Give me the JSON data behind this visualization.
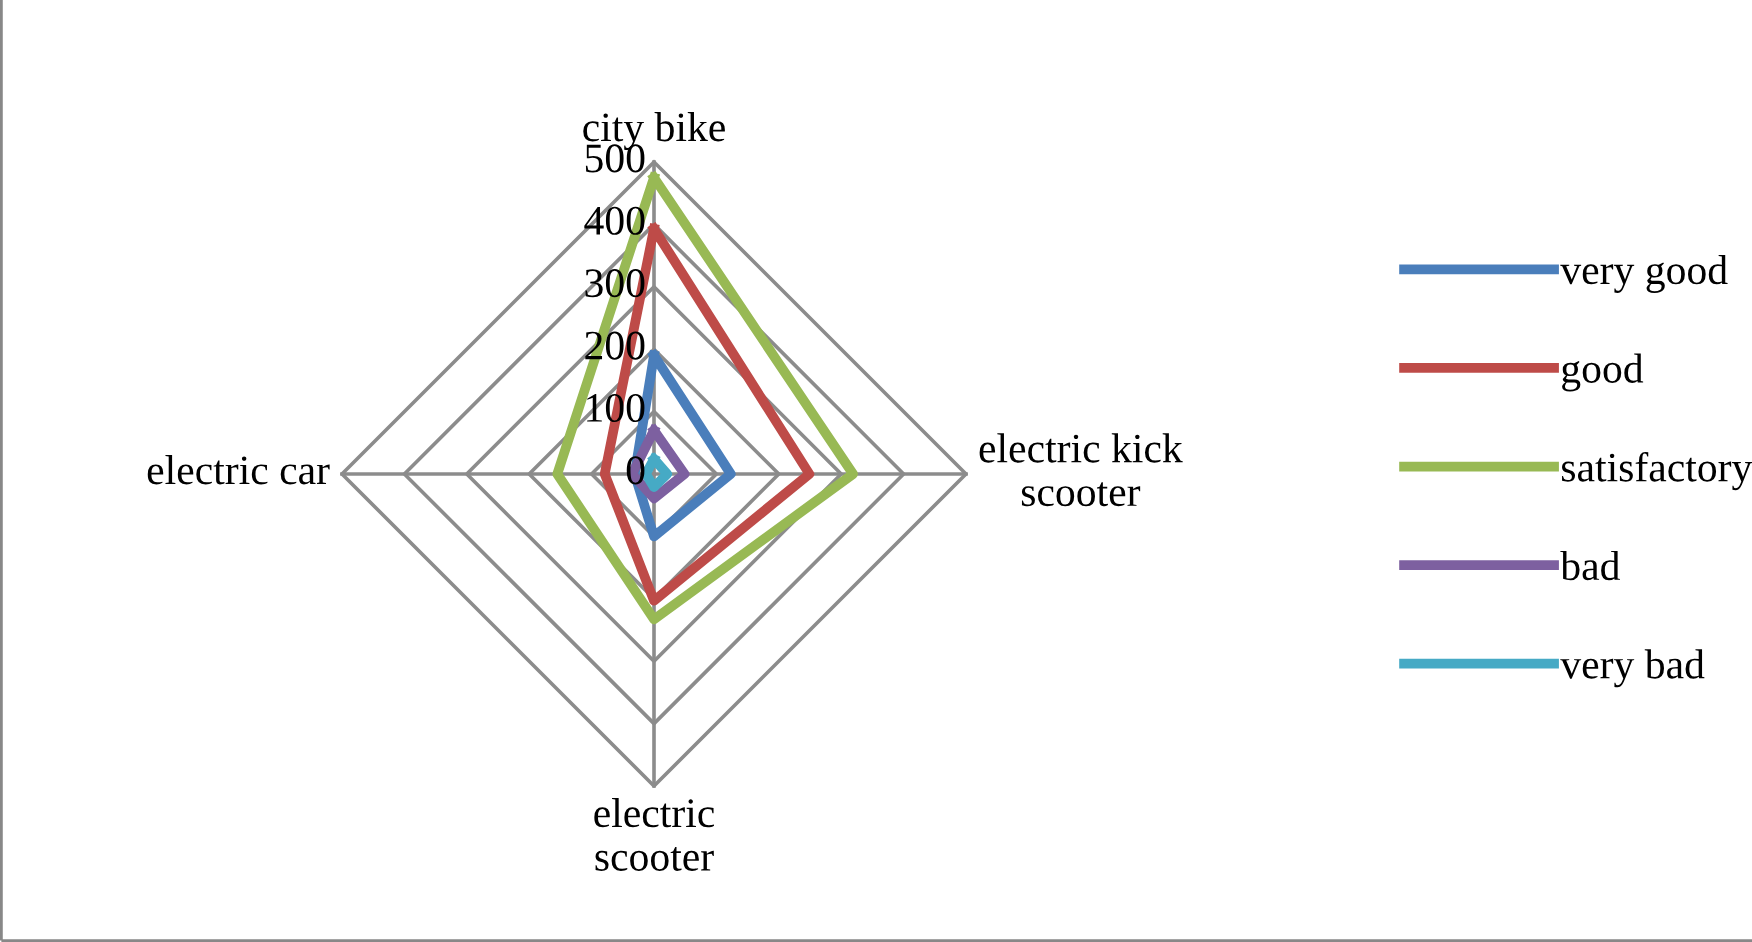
{
  "chart_data": {
    "type": "radar",
    "categories": [
      "city bike",
      "electric kick\nscooter",
      "electric\nscooter",
      "electric car"
    ],
    "ylim": [
      0,
      500
    ],
    "yticks": [
      0,
      100,
      200,
      300,
      400,
      500
    ],
    "grid": true,
    "legend": "right",
    "marker": "none",
    "series": [
      {
        "name": "very good",
        "color": "#4a7ebb",
        "values": [
          190,
          123,
          100,
          31
        ]
      },
      {
        "name": "good",
        "color": "#be4b48",
        "values": [
          393,
          249,
          203,
          79
        ]
      },
      {
        "name": "satisfactory",
        "color": "#98b954",
        "values": [
          475,
          319,
          233,
          155
        ]
      },
      {
        "name": "bad",
        "color": "#7d60a0",
        "values": [
          70,
          49,
          39,
          35
        ]
      },
      {
        "name": "very bad",
        "color": "#46aac5",
        "values": [
          24,
          21,
          21,
          13
        ]
      }
    ]
  }
}
